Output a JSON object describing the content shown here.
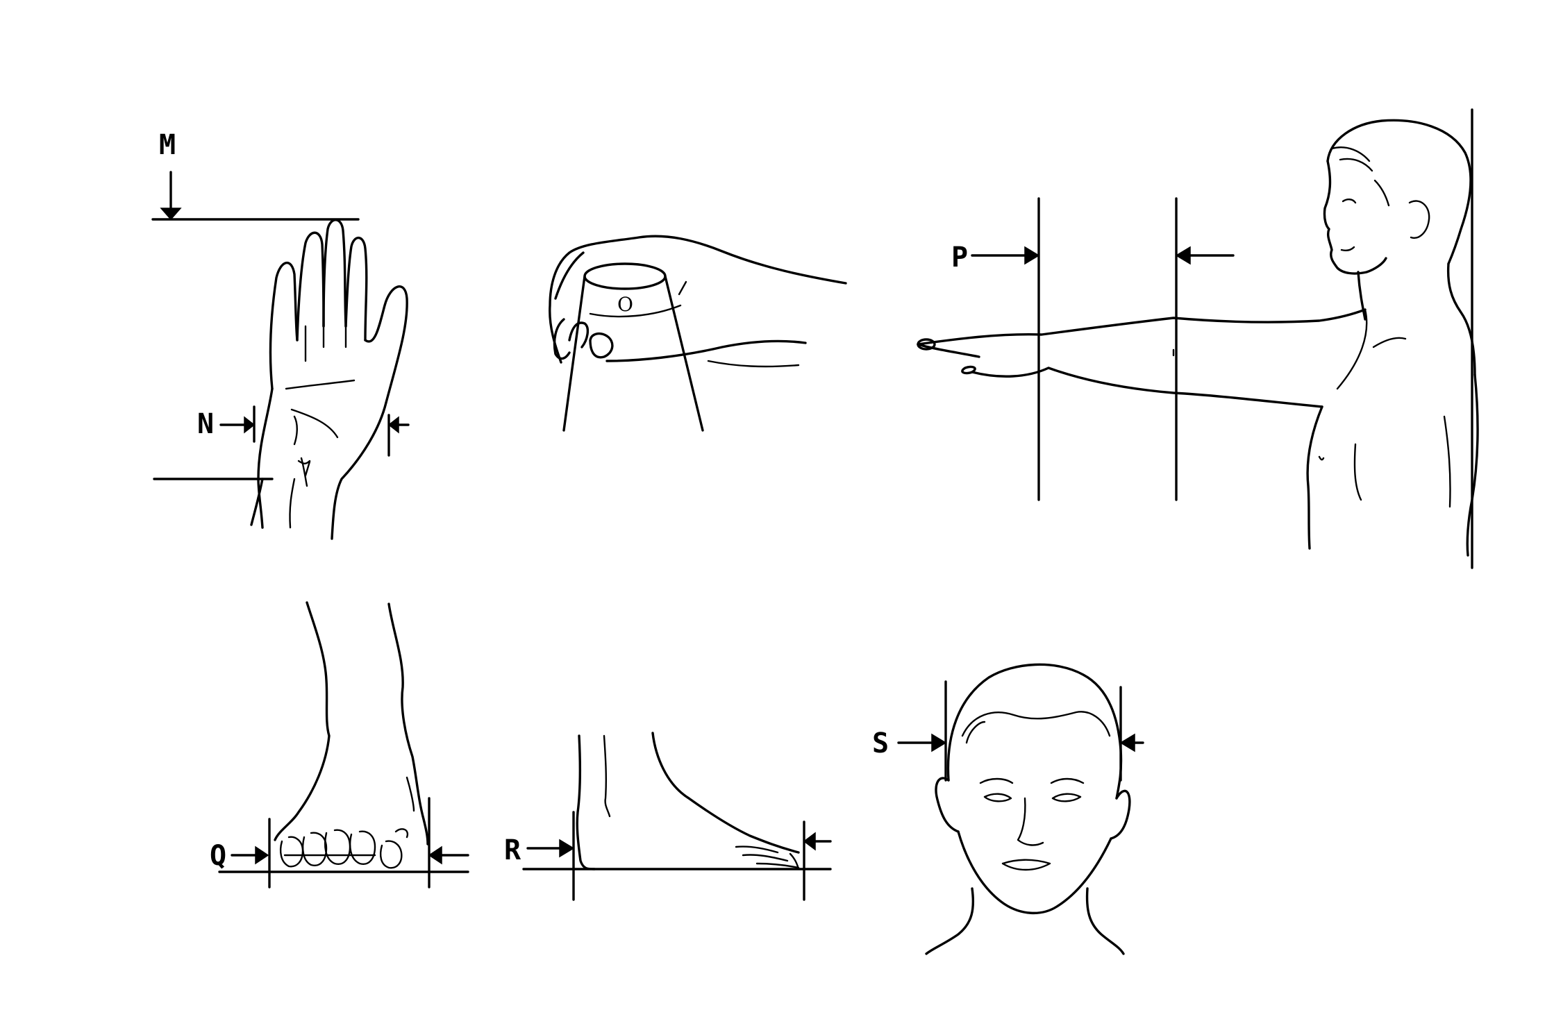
{
  "diagram": {
    "labels": {
      "m": "M",
      "n": "N",
      "o": "O",
      "p": "P",
      "q": "Q",
      "r": "R",
      "s": "S"
    },
    "colors": {
      "ink": "#000000",
      "background": "#ffffff"
    }
  }
}
